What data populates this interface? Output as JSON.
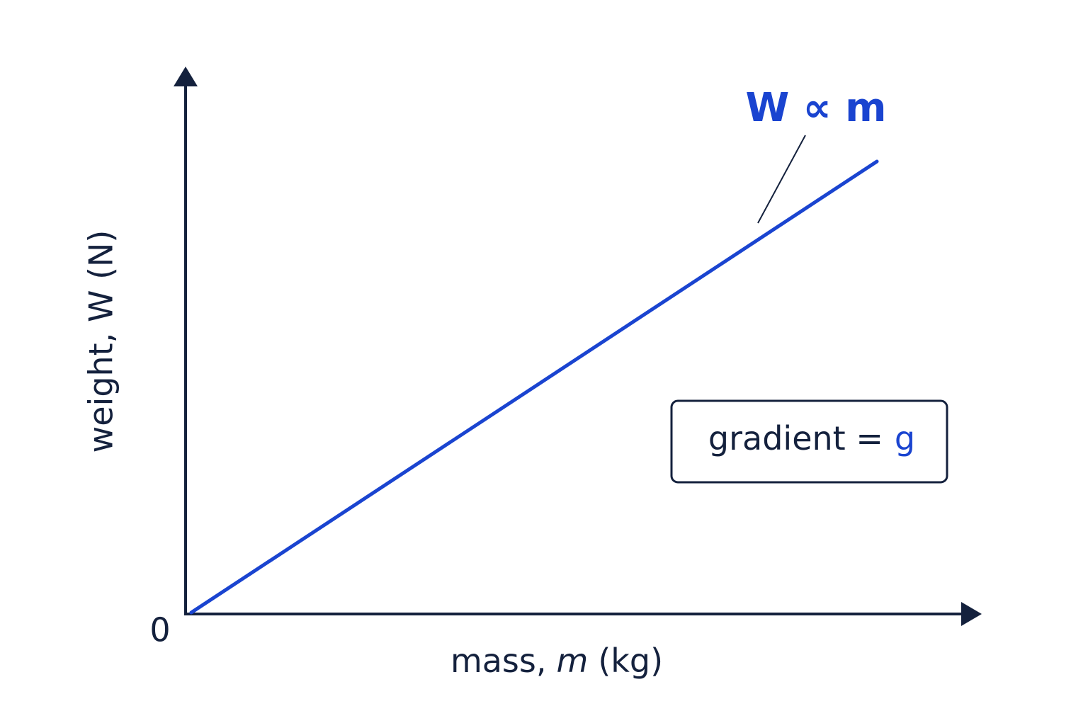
{
  "axes": {
    "y_label": "weight, W (N)",
    "x_label": {
      "word": "mass,",
      "symbol": "m",
      "unit": "(kg)"
    },
    "origin": "0"
  },
  "line_label": "W ∝ m",
  "gradient_box": {
    "text": "gradient =",
    "symbol": "g"
  }
}
